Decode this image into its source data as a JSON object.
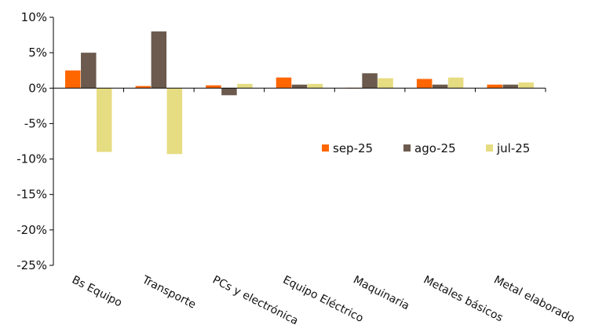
{
  "chart_data": {
    "type": "bar",
    "categories": [
      "Bs Equipo",
      "Transporte",
      "PCs y electrónica",
      "Equipo Eléctrico",
      "Maquinaria",
      "Metales básicos",
      "Metal elaborado"
    ],
    "series": [
      {
        "name": "sep-25",
        "color": "#ff6600",
        "values": [
          2.5,
          0.3,
          0.4,
          1.5,
          0.05,
          1.3,
          0.5
        ]
      },
      {
        "name": "ago-25",
        "color": "#6b5a4d",
        "values": [
          5.0,
          8.0,
          -1.0,
          0.5,
          2.1,
          0.5,
          0.5
        ]
      },
      {
        "name": "jul-25",
        "color": "#e6dc82",
        "values": [
          -9.0,
          -9.3,
          0.6,
          0.6,
          1.4,
          1.5,
          0.8
        ]
      }
    ],
    "yticks": [
      "10%",
      "5%",
      "0%",
      "-5%",
      "-10%",
      "-15%",
      "-20%",
      "-25%"
    ],
    "ylim": [
      -25,
      10
    ],
    "ytick_step": 5,
    "title": "",
    "xlabel": "",
    "ylabel": "",
    "grid": false,
    "legend_position": "center-right"
  }
}
